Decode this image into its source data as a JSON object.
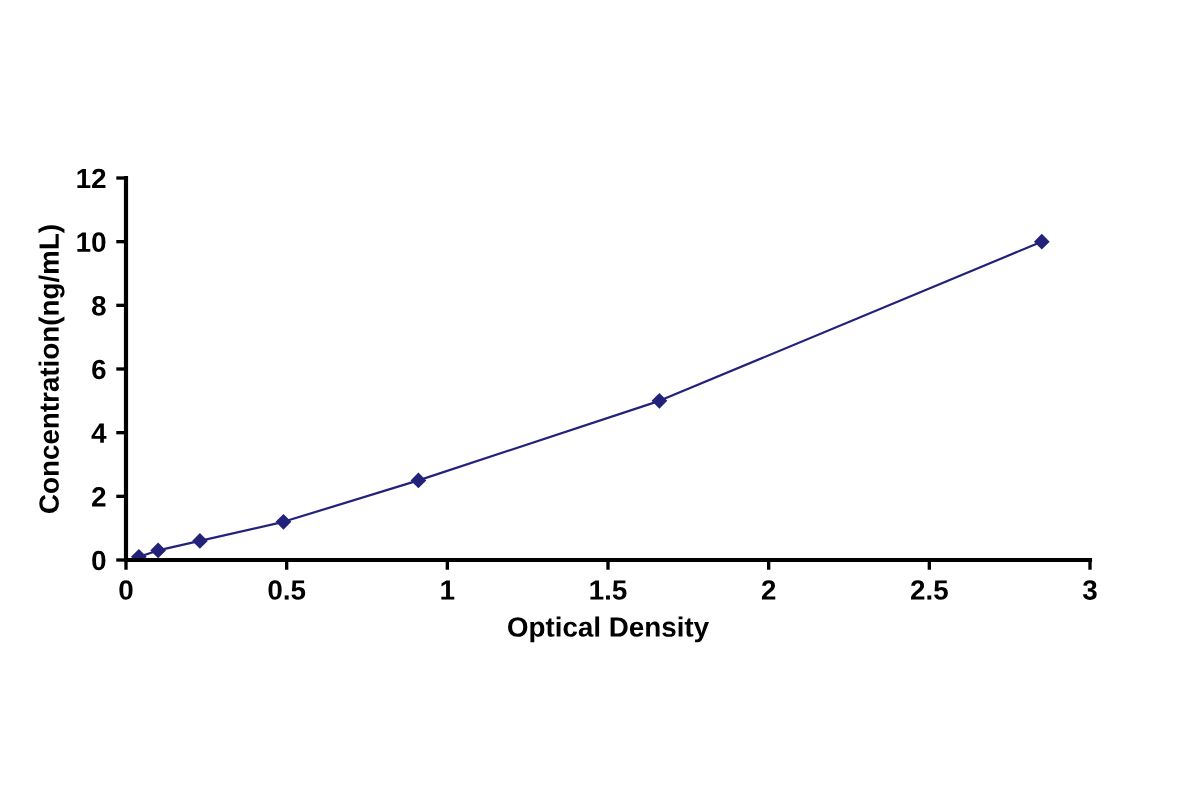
{
  "chart_data": {
    "type": "line",
    "xlabel": "Optical Density",
    "ylabel": "Concentration(ng/mL)",
    "x": [
      0.04,
      0.1,
      0.23,
      0.49,
      0.91,
      1.66,
      2.85
    ],
    "series": [
      {
        "color": "#22227a",
        "values": [
          0.1,
          0.3,
          0.6,
          1.2,
          2.5,
          5,
          10
        ]
      }
    ],
    "xlim": [
      0,
      3
    ],
    "ylim": [
      0,
      12
    ],
    "xticks": [
      0,
      0.5,
      1,
      1.5,
      2,
      2.5,
      3
    ],
    "yticks": [
      0,
      2,
      4,
      6,
      8,
      10,
      12
    ],
    "marker": "diamond",
    "line_style": "solid",
    "grid": false,
    "legend": false
  }
}
